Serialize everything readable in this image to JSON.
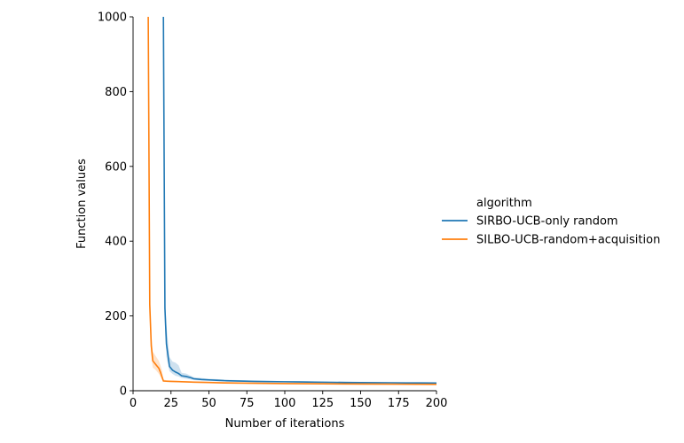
{
  "chart_data": {
    "type": "line",
    "xlabel": "Number of iterations",
    "ylabel": "Function values",
    "xlim": [
      0,
      200
    ],
    "ylim": [
      0,
      1000
    ],
    "xticks": [
      0,
      25,
      50,
      75,
      100,
      125,
      150,
      175,
      200
    ],
    "yticks": [
      0,
      200,
      400,
      600,
      800,
      1000
    ],
    "grid": false,
    "legend": {
      "title": "algorithm",
      "placement": "right"
    },
    "series": [
      {
        "name": "SIRBO-UCB-only random",
        "color": "#1f77b4",
        "x": [
          20,
          21,
          22,
          24,
          26,
          28,
          30,
          32,
          35,
          38,
          40,
          45,
          50,
          55,
          60,
          70,
          80,
          90,
          100,
          110,
          120,
          130,
          140,
          150,
          160,
          170,
          180,
          190,
          200
        ],
        "y": [
          1000,
          220,
          125,
          65,
          55,
          50,
          46,
          40,
          38,
          35,
          32,
          30,
          29,
          28,
          27,
          26,
          25,
          24.5,
          24,
          23.5,
          23,
          22.5,
          22,
          21.8,
          21.5,
          21.3,
          21,
          20.8,
          20.5
        ],
        "lower": [
          1000,
          175,
          90,
          52,
          45,
          40,
          38,
          34,
          32,
          30,
          28,
          27,
          26,
          25.5,
          25,
          24,
          23.5,
          23,
          22.5,
          22,
          21.5,
          21,
          20.8,
          20.5,
          20.2,
          20,
          19.8,
          19.6,
          19.4
        ],
        "upper": [
          1000,
          255,
          175,
          90,
          78,
          75,
          68,
          48,
          46,
          40,
          36,
          34,
          32,
          31,
          29.5,
          28.5,
          27,
          26.5,
          26,
          25.5,
          25,
          24.5,
          24,
          23.5,
          23,
          22.8,
          22.5,
          22.2,
          22
        ]
      },
      {
        "name": "SILBO-UCB-random+acquisition",
        "color": "#ff7f0e",
        "x": [
          10,
          11,
          12,
          13,
          15,
          17,
          18,
          19,
          20,
          22,
          25,
          30,
          40,
          50,
          60,
          80,
          100,
          125,
          150,
          175,
          200
        ],
        "y": [
          1000,
          230,
          120,
          80,
          70,
          60,
          50,
          38,
          26,
          25.5,
          25,
          24.5,
          23,
          22,
          21,
          20,
          19,
          18.5,
          18,
          17.5,
          17
        ],
        "lower": [
          1000,
          200,
          95,
          62,
          55,
          45,
          38,
          30,
          24,
          23.5,
          23,
          22.5,
          21.5,
          20.5,
          19.5,
          18.8,
          18,
          17.5,
          17,
          16.5,
          16
        ],
        "upper": [
          1000,
          260,
          150,
          105,
          92,
          80,
          68,
          55,
          30,
          28,
          27,
          26.5,
          25,
          24,
          23,
          22,
          21,
          20.5,
          20,
          19.5,
          19
        ]
      }
    ]
  }
}
